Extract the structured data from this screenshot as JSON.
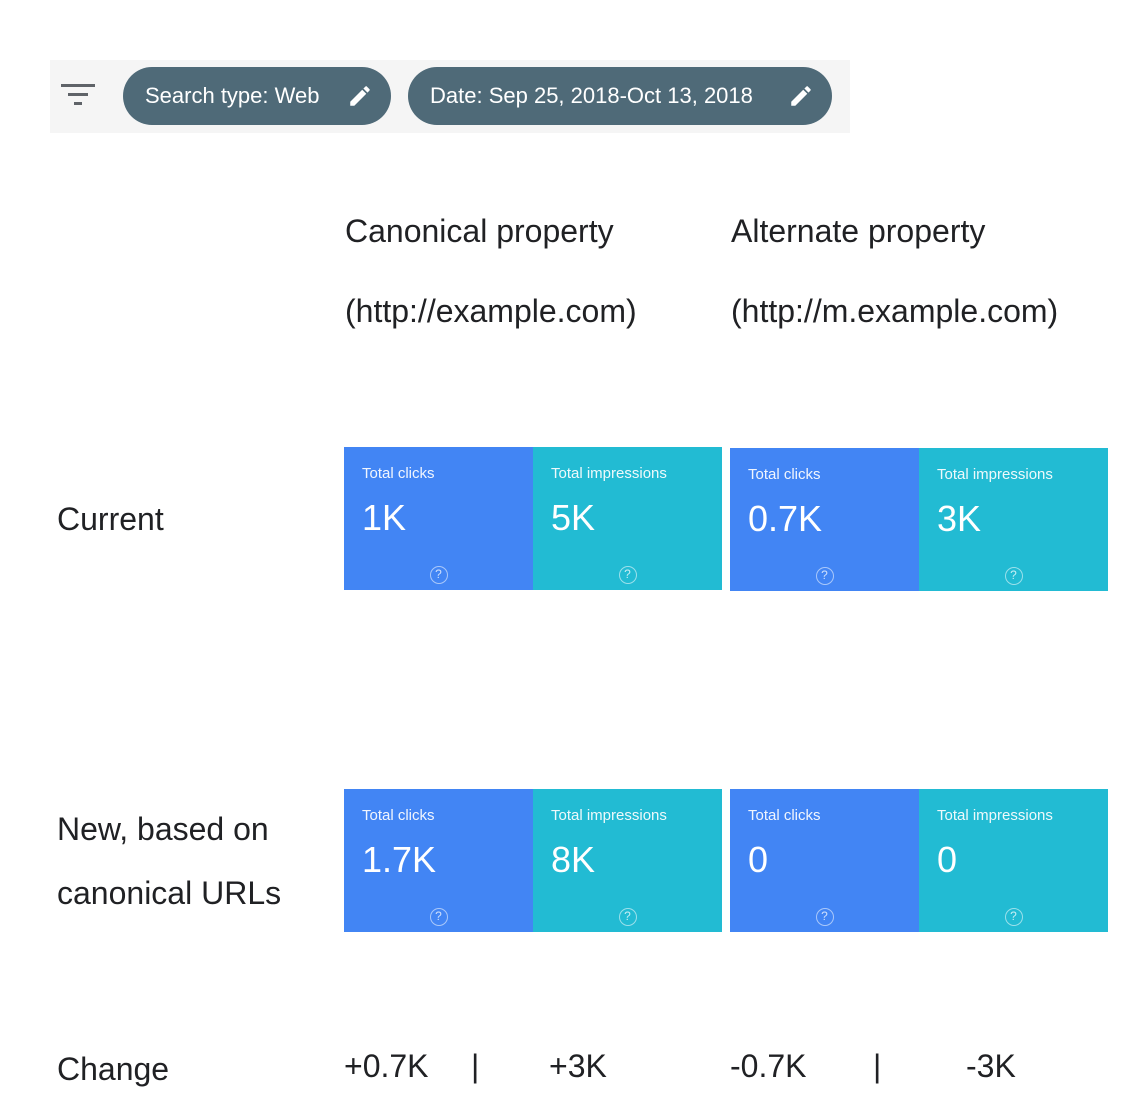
{
  "filters": {
    "chips": [
      {
        "label": "Search type: Web",
        "icon": "pencil-icon"
      },
      {
        "label": "Date: Sep 25, 2018-Oct 13, 2018",
        "icon": "pencil-icon"
      }
    ]
  },
  "columns": {
    "canonical": {
      "line1": "Canonical property",
      "line2": "(http://example.com)"
    },
    "alternate": {
      "line1": "Alternate property",
      "line2": "(http://m.example.com)"
    }
  },
  "rows": {
    "current": {
      "label": "Current",
      "canonical": {
        "clicks_label": "Total clicks",
        "clicks": "1K",
        "impressions_label": "Total impressions",
        "impressions": "5K"
      },
      "alternate": {
        "clicks_label": "Total clicks",
        "clicks": "0.7K",
        "impressions_label": "Total impressions",
        "impressions": "3K"
      }
    },
    "new": {
      "label_line1": "New, based on",
      "label_line2": "canonical URLs",
      "canonical": {
        "clicks_label": "Total clicks",
        "clicks": "1.7K",
        "impressions_label": "Total impressions",
        "impressions": "8K"
      },
      "alternate": {
        "clicks_label": "Total clicks",
        "clicks": "0",
        "impressions_label": "Total impressions",
        "impressions": "0"
      }
    },
    "change": {
      "label": "Change",
      "canonical_clicks": "+0.7K",
      "canonical_impressions": "+3K",
      "alternate_clicks": "-0.7K",
      "alternate_impressions": "-3K",
      "separator": "|"
    }
  },
  "colors": {
    "chip_bg": "#4f6a78",
    "clicks_card": "#4285f4",
    "impressions_card": "#22bbd3"
  }
}
